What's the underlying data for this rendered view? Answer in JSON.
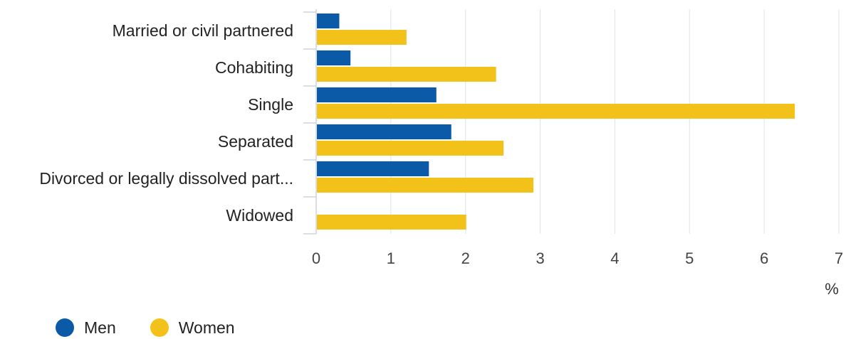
{
  "chart_data": {
    "type": "bar",
    "orientation": "horizontal",
    "categories": [
      "Married or civil partnered",
      "Cohabiting",
      "Single",
      "Separated",
      "Divorced or legally dissolved part...",
      "Widowed"
    ],
    "series": [
      {
        "name": "Men",
        "color": "#0b5aa8",
        "values": [
          0.3,
          0.45,
          1.6,
          1.8,
          1.5,
          0
        ]
      },
      {
        "name": "Women",
        "color": "#f2c21b",
        "values": [
          1.2,
          2.4,
          6.4,
          2.5,
          2.9,
          2.0
        ]
      }
    ],
    "xlim": [
      0,
      7
    ],
    "xticks": [
      "0",
      "1",
      "2",
      "3",
      "4",
      "5",
      "6",
      "7"
    ],
    "xunit": "%",
    "grid": true,
    "legend_position": "bottom-left"
  }
}
